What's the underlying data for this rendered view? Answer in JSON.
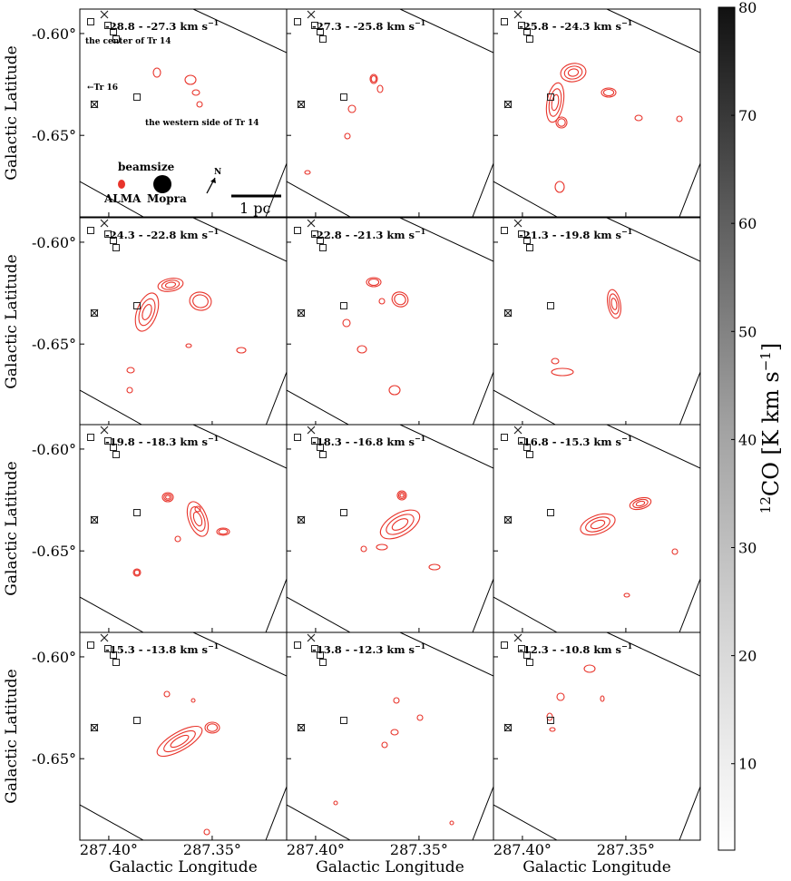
{
  "chart_data": {
    "type": "heatmap",
    "subtype": "channel-map with contour overlay",
    "layout": "4 rows x 3 columns",
    "axes": {
      "xlabel": "Galactic Longitude",
      "ylabel": "Galactic Latitude",
      "xtick_labels": [
        "287.40°",
        "287.35°"
      ],
      "xtick_values": [
        287.4,
        287.35
      ],
      "ytick_labels": [
        "-0.60°",
        "-0.65°"
      ],
      "ytick_values": [
        -0.6,
        -0.65
      ],
      "xlim": [
        287.414,
        287.314
      ],
      "ylim": [
        -0.69,
        -0.588
      ]
    },
    "colorbar": {
      "label": "12CO [K km s-1]",
      "label_base": "CO [K km s",
      "label_iso": "12",
      "label_exp": "−1",
      "label_close": "]",
      "ticks": [
        10,
        20,
        30,
        40,
        50,
        60,
        70,
        80
      ],
      "range": [
        2,
        80
      ],
      "colormap": "grey (white to black)"
    },
    "panels": [
      {
        "label": "-28.8 - -27.3 km s",
        "v_range": [
          -28.8,
          -27.3
        ]
      },
      {
        "label": "-27.3 - -25.8 km s",
        "v_range": [
          -27.3,
          -25.8
        ]
      },
      {
        "label": "-25.8 - -24.3 km s",
        "v_range": [
          -25.8,
          -24.3
        ]
      },
      {
        "label": "-24.3 - -22.8 km s",
        "v_range": [
          -24.3,
          -22.8
        ]
      },
      {
        "label": "-22.8 - -21.3 km s",
        "v_range": [
          -22.8,
          -21.3
        ]
      },
      {
        "label": "-21.3 - -19.8 km s",
        "v_range": [
          -21.3,
          -19.8
        ]
      },
      {
        "label": "-19.8 - -18.3 km s",
        "v_range": [
          -19.8,
          -18.3
        ]
      },
      {
        "label": "-18.3 - -16.8 km s",
        "v_range": [
          -18.3,
          -16.8
        ]
      },
      {
        "label": "-16.8 - -15.3 km s",
        "v_range": [
          -16.8,
          -15.3
        ]
      },
      {
        "label": "-15.3 - -13.8 km s",
        "v_range": [
          -15.3,
          -13.8
        ]
      },
      {
        "label": "-13.8 - -12.3 km s",
        "v_range": [
          -13.8,
          -12.3
        ]
      },
      {
        "label": "-12.3 - -10.8 km s",
        "v_range": [
          -12.3,
          -10.8
        ]
      }
    ],
    "unit_exp": "−1",
    "annotations": {
      "center_tr14": "the center of Tr 14",
      "tr16": "←Tr 16",
      "western_side": "the western side of Tr 14",
      "beamsize": "beamsize",
      "alma": "ALMA",
      "mopra": "Mopra",
      "north": "N",
      "scalebar": "1 pc"
    },
    "contour_color": "#e8342b",
    "marker_color": "#333333"
  }
}
